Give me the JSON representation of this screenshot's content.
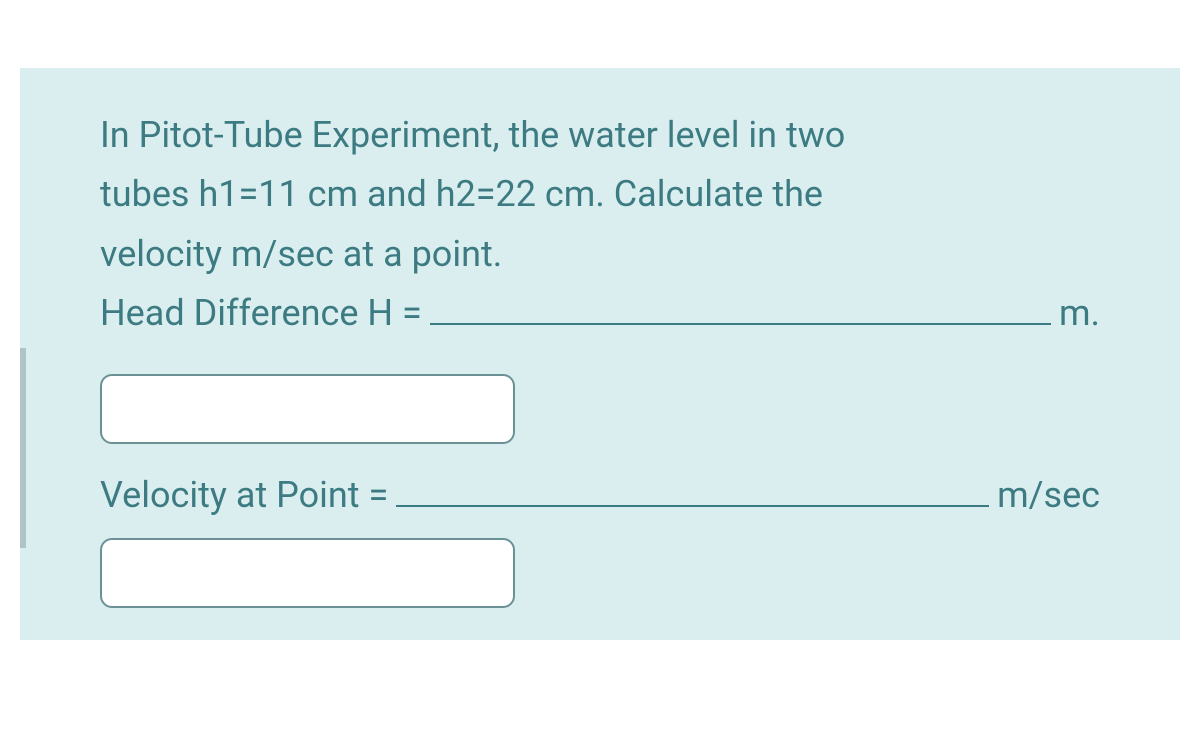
{
  "question": {
    "line1": "In Pitot-Tube Experiment, the water level in two",
    "line2": "tubes h1=11 cm and h2=22 cm. Calculate the",
    "line3": "velocity m/sec at a point."
  },
  "fields": {
    "head_difference": {
      "label": "Head Difference H =",
      "unit": "m."
    },
    "velocity": {
      "label": "Velocity at Point = ",
      "unit": "m/sec"
    }
  },
  "colors": {
    "panel_bg": "#daeef0",
    "text": "#3d7b82",
    "input_border": "#6b9196",
    "input_bg": "#ffffff"
  }
}
